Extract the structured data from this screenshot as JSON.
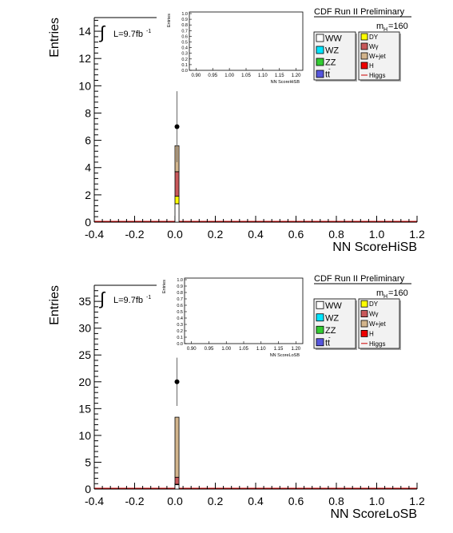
{
  "chart_data": [
    {
      "type": "bar",
      "stacked": true,
      "ylabel": "Entries",
      "xlabel": "NN ScoreHiSB",
      "xlim": [
        -0.4,
        1.2
      ],
      "ylim": [
        0,
        15
      ],
      "x_ticks": [
        "-0.4",
        "-0.2",
        "0.0",
        "0.2",
        "0.4",
        "0.6",
        "0.8",
        "1.0",
        "1.2"
      ],
      "y_ticks": [
        "0",
        "2",
        "4",
        "6",
        "8",
        "10",
        "12",
        "14"
      ],
      "banner": "CDF Run II Preliminary",
      "lumi_label": "L=9.7fb",
      "lumi_sup": "-1",
      "mass_label_prefix": "m",
      "mass_label_sub": "H",
      "mass_label_value": "=160",
      "bin": [
        0.0,
        0.02
      ],
      "stack": [
        {
          "name": "WW",
          "value": 1.35,
          "color": "#ffffff"
        },
        {
          "name": "DY",
          "value": 0.55,
          "color": "#ffff00"
        },
        {
          "name": "Wγ",
          "value": 1.8,
          "color": "#c8585a"
        },
        {
          "name": "W+jet",
          "value": 1.9,
          "color": "#d2b48c"
        }
      ],
      "data_point": {
        "x": 0.01,
        "y": 7,
        "err_low": 4.4,
        "err_high": 9.6
      },
      "legend_left": [
        {
          "label": "WW",
          "color": "#ffffff",
          "sup": ""
        },
        {
          "label": "WZ",
          "color": "#00e5ff",
          "sup": ""
        },
        {
          "label": "ZZ",
          "color": "#33cc33",
          "sup": ""
        },
        {
          "label": "tt",
          "color": "#5555dd",
          "sup": "-"
        }
      ],
      "legend_right": [
        {
          "label": "DY",
          "color": "#ffff00",
          "kind": "box"
        },
        {
          "label": "Wγ",
          "color": "#c8585a",
          "kind": "box"
        },
        {
          "label": "W+jet",
          "color": "#d2b48c",
          "kind": "box"
        },
        {
          "label": "H",
          "color": "#ee0000",
          "kind": "box"
        },
        {
          "label": "Higgs",
          "color": "#cc0000",
          "kind": "line"
        }
      ],
      "inset": {
        "ylabel": "Entries",
        "xlabel": "NN ScoreHiSB",
        "x_ticks": [
          "0.90",
          "0.95",
          "1.00",
          "1.05",
          "1.10",
          "1.15",
          "1.20"
        ],
        "y_ticks": [
          "0.0",
          "0.1",
          "0.2",
          "0.3",
          "0.4",
          "0.5",
          "0.6",
          "0.7",
          "0.8",
          "0.9",
          "1.0"
        ]
      }
    },
    {
      "type": "bar",
      "stacked": true,
      "ylabel": "Entries",
      "xlabel": "NN ScoreLoSB",
      "xlim": [
        -0.4,
        1.2
      ],
      "ylim": [
        0,
        38
      ],
      "x_ticks": [
        "-0.4",
        "-0.2",
        "0.0",
        "0.2",
        "0.4",
        "0.6",
        "0.8",
        "1.0",
        "1.2"
      ],
      "y_ticks": [
        "0",
        "5",
        "10",
        "15",
        "20",
        "25",
        "30",
        "35"
      ],
      "banner": "CDF Run II Preliminary",
      "lumi_label": "L=9.7fb",
      "lumi_sup": "-1",
      "mass_label_prefix": "m",
      "mass_label_sub": "H",
      "mass_label_value": "=160",
      "bin": [
        0.0,
        0.02
      ],
      "stack": [
        {
          "name": "WW",
          "value": 0.8,
          "color": "#ffffff"
        },
        {
          "name": "DY",
          "value": 0.1,
          "color": "#ffff00"
        },
        {
          "name": "Wγ",
          "value": 1.3,
          "color": "#c8585a"
        },
        {
          "name": "W+jet",
          "value": 11.2,
          "color": "#d2b48c"
        }
      ],
      "data_point": {
        "x": 0.01,
        "y": 20,
        "err_low": 15.5,
        "err_high": 24.5
      },
      "legend_left": [
        {
          "label": "WW",
          "color": "#ffffff",
          "sup": ""
        },
        {
          "label": "WZ",
          "color": "#00e5ff",
          "sup": ""
        },
        {
          "label": "ZZ",
          "color": "#33cc33",
          "sup": ""
        },
        {
          "label": "tt",
          "color": "#5555dd",
          "sup": "-"
        }
      ],
      "legend_right": [
        {
          "label": "DY",
          "color": "#ffff00",
          "kind": "box"
        },
        {
          "label": "Wγ",
          "color": "#c8585a",
          "kind": "box"
        },
        {
          "label": "W+jet",
          "color": "#d2b48c",
          "kind": "box"
        },
        {
          "label": "H",
          "color": "#ee0000",
          "kind": "box"
        },
        {
          "label": "Higgs",
          "color": "#cc0000",
          "kind": "line"
        }
      ],
      "inset": {
        "ylabel": "Entries",
        "xlabel": "NN ScoreLoSB",
        "x_ticks": [
          "0.90",
          "0.95",
          "1.00",
          "1.05",
          "1.10",
          "1.15",
          "1.20"
        ],
        "y_ticks": [
          "0.0",
          "0.1",
          "0.2",
          "0.3",
          "0.4",
          "0.5",
          "0.6",
          "0.7",
          "0.8",
          "0.9",
          "1.0"
        ]
      }
    }
  ]
}
